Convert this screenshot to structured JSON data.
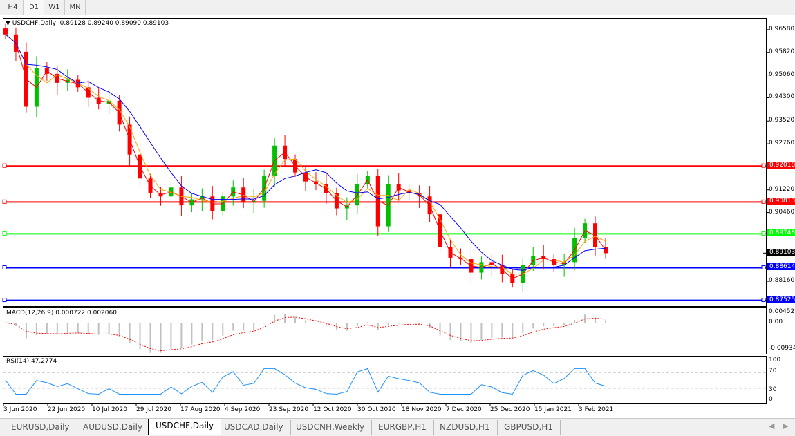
{
  "timeframes": [
    {
      "label": "H4"
    },
    {
      "label": "D1",
      "active": true
    },
    {
      "label": "W1"
    },
    {
      "label": "MN"
    }
  ],
  "chart": {
    "title": "USDCHF,Daily",
    "ohlc": "0.89128 0.89240 0.89090 0.89103"
  },
  "macd": {
    "title": "MACD(12,26,9) 0.000722 0.002060",
    "ticks": [
      "0.004527",
      "0.00",
      "-0.009348"
    ]
  },
  "rsi": {
    "title": "RSI(14) 47.2774",
    "ticks": [
      "100",
      "70",
      "30",
      "0"
    ]
  },
  "tabs": [
    {
      "label": "EURUSD,Daily"
    },
    {
      "label": "AUDUSD,Daily"
    },
    {
      "label": "USDCHF,Daily",
      "active": true
    },
    {
      "label": "USDCAD,Daily"
    },
    {
      "label": "USDCNH,Weekly"
    },
    {
      "label": "EURGBP,H1"
    },
    {
      "label": "NZDUSD,H1"
    },
    {
      "label": "GBPUSD,H1"
    }
  ],
  "colors": {
    "up": "#00c000",
    "down": "#ff0000",
    "ma_fast": "#ff0000",
    "ma_mid": "#ffa500",
    "ma_slow": "#0000ff",
    "rsi": "#1e90ff",
    "macd_signal": "#ff0000",
    "macd_hist": "#c0c0c0"
  },
  "chart_data": {
    "type": "candlestick",
    "title": "USDCHF,Daily",
    "x_start": "3 Jun 2020",
    "x_end": "12 Feb 2021",
    "x_tick_labels": [
      "3 Jun 2020",
      "22 Jun 2020",
      "10 Jul 2020",
      "29 Jul 2020",
      "17 Aug 2020",
      "4 Sep 2020",
      "23 Sep 2020",
      "12 Oct 2020",
      "30 Oct 2020",
      "18 Nov 2020",
      "7 Dec 2020",
      "25 Dec 2020",
      "15 Jan 2021",
      "3 Feb 2021"
    ],
    "y_tick_labels": [
      "0.96580",
      "0.95820",
      "0.95060",
      "0.94300",
      "0.93520",
      "0.92760",
      "0.91220",
      "0.90460",
      "0.88160"
    ],
    "ylim": [
      0.8733,
      0.9697
    ],
    "closes": [
      0.9642,
      0.9584,
      0.94,
      0.953,
      0.951,
      0.948,
      0.949,
      0.9465,
      0.943,
      0.941,
      0.942,
      0.934,
      0.924,
      0.916,
      0.911,
      0.91,
      0.913,
      0.907,
      0.909,
      0.91,
      0.905,
      0.91,
      0.913,
      0.908,
      0.9085,
      0.917,
      0.927,
      0.9225,
      0.918,
      0.915,
      0.914,
      0.911,
      0.906,
      0.907,
      0.914,
      0.917,
      0.9,
      0.914,
      0.912,
      0.911,
      0.91,
      0.904,
      0.893,
      0.8895,
      0.889,
      0.8845,
      0.888,
      0.887,
      0.884,
      0.881,
      0.887,
      0.89,
      0.889,
      0.887,
      0.888,
      0.896,
      0.901,
      0.893,
      0.891
    ],
    "levels": [
      {
        "value": "0.92018",
        "color": "#ff0000"
      },
      {
        "value": "0.90813",
        "color": "#ff0000"
      },
      {
        "value": "0.89748",
        "color": "#00ff00"
      },
      {
        "value": "0.88614",
        "color": "#0000ff"
      },
      {
        "value": "0.87525",
        "color": "#0000ff"
      }
    ],
    "current_price": "0.89103"
  }
}
